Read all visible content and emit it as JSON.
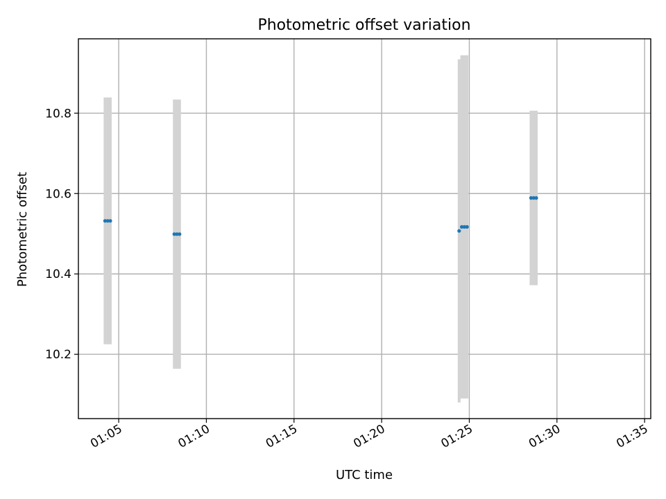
{
  "chart_data": {
    "type": "scatter",
    "title": "Photometric offset variation",
    "xlabel": "UTC time",
    "ylabel": "Photometric offset",
    "x_ticks": [
      "01:05",
      "01:10",
      "01:15",
      "01:20",
      "01:25",
      "01:30",
      "01:35"
    ],
    "x_tick_minutes": [
      65,
      70,
      75,
      80,
      85,
      90,
      95
    ],
    "xlim_minutes": [
      62.7,
      95.35
    ],
    "y_ticks": [
      "10.2",
      "10.4",
      "10.6",
      "10.8"
    ],
    "y_tick_values": [
      10.2,
      10.4,
      10.6,
      10.8
    ],
    "ylim": [
      10.04,
      10.985
    ],
    "grid": true,
    "colors": {
      "point": "#1f77b4",
      "errorbar": "#d3d3d3"
    },
    "points": [
      {
        "x": 64.22,
        "y": 10.532,
        "err": 0.307
      },
      {
        "x": 64.37,
        "y": 10.532,
        "err": 0.307
      },
      {
        "x": 64.52,
        "y": 10.532,
        "err": 0.307
      },
      {
        "x": 68.17,
        "y": 10.499,
        "err": 0.335
      },
      {
        "x": 68.32,
        "y": 10.499,
        "err": 0.335
      },
      {
        "x": 68.47,
        "y": 10.499,
        "err": 0.335
      },
      {
        "x": 84.42,
        "y": 10.507,
        "err": 0.427
      },
      {
        "x": 84.57,
        "y": 10.517,
        "err": 0.427
      },
      {
        "x": 84.72,
        "y": 10.517,
        "err": 0.427
      },
      {
        "x": 84.87,
        "y": 10.517,
        "err": 0.427
      },
      {
        "x": 88.52,
        "y": 10.589,
        "err": 0.217
      },
      {
        "x": 88.67,
        "y": 10.589,
        "err": 0.217
      },
      {
        "x": 88.82,
        "y": 10.589,
        "err": 0.217
      }
    ]
  }
}
